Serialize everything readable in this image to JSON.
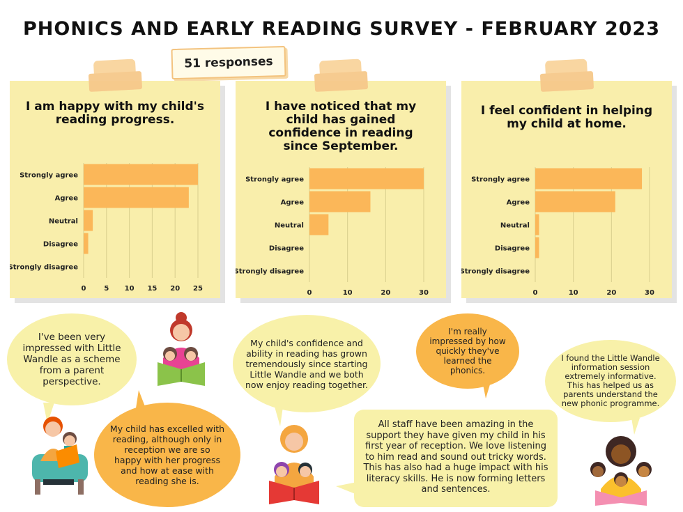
{
  "header": {
    "title": "PHONICS AND EARLY READING SURVEY - FEBRUARY 2023",
    "responses": "51 responses"
  },
  "colors": {
    "bar": "#fbb759",
    "panel": "#f9eeab",
    "bubble_yellow": "#f8f1a9",
    "bubble_orange": "#f9b649"
  },
  "chart_data": [
    {
      "type": "bar",
      "orientation": "horizontal",
      "title": "I am happy with my child's reading progress.",
      "categories": [
        "Strongly agree",
        "Agree",
        "Neutral",
        "Disagree",
        "Strongly disagree"
      ],
      "values": [
        25,
        23,
        2,
        1,
        0
      ],
      "xticks": [
        0,
        5,
        10,
        15,
        20,
        25
      ],
      "xlim": [
        0,
        25
      ],
      "grid": true
    },
    {
      "type": "bar",
      "orientation": "horizontal",
      "title": "I have noticed that my child has gained confidence in reading since September.",
      "categories": [
        "Strongly agree",
        "Agree",
        "Neutral",
        "Disagree",
        "Strongly disagree"
      ],
      "values": [
        30,
        16,
        5,
        0,
        0
      ],
      "xticks": [
        0,
        10,
        20,
        30
      ],
      "xlim": [
        0,
        30
      ],
      "grid": true
    },
    {
      "type": "bar",
      "orientation": "horizontal",
      "title": "I feel confident in helping my child at home.",
      "categories": [
        "Strongly agree",
        "Agree",
        "Neutral",
        "Disagree",
        "Strongly disagree"
      ],
      "values": [
        28,
        21,
        1,
        1,
        0
      ],
      "xticks": [
        0,
        10,
        20,
        30
      ],
      "xlim": [
        0,
        30
      ],
      "grid": true
    }
  ],
  "quotes": {
    "q1": "I've been very impressed with Little Wandle as a scheme from a parent perspective.",
    "q2": "My child has excelled with reading, although only in reception we are so happy with her progress and how at ease with reading she is.",
    "q3": "My child's confidence and ability in reading has grown tremendously since starting Little Wandle and we both now enjoy reading together.",
    "q4": "I'm really impressed by how quickly they've learned the phonics.",
    "q5": "I found the Little Wandle information session extremely informative. This has helped us as parents understand the new phonic programme.",
    "q6": "All staff have been amazing in the support they have given my child in his first year of reception. We love listening to him read and sound out tricky words. This has also had a huge impact with his literacy skills. He is now forming letters and sentences."
  },
  "illustrations": [
    "mother-reading-to-two-children",
    "father-reading-to-child",
    "mother-in-hijab-reading-to-children",
    "woman-reading-to-three-children"
  ]
}
